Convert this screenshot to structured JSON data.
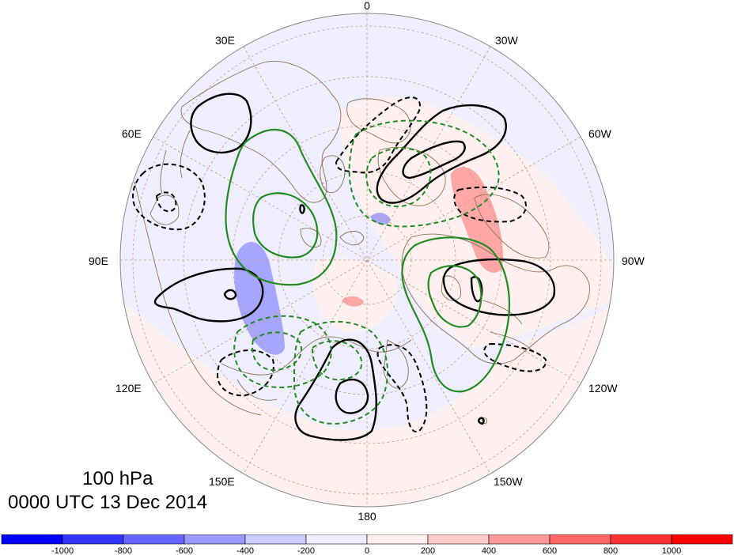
{
  "title": {
    "level": "100 hPa",
    "time": "0000 UTC 13 Dec 2014"
  },
  "longitude_labels": {
    "lon_0": "0",
    "lon_30w": "30W",
    "lon_60w": "60W",
    "lon_90w": "90W",
    "lon_120w": "120W",
    "lon_150w": "150W",
    "lon_180": "180",
    "lon_150e": "150E",
    "lon_120e": "120E",
    "lon_90e": "90E",
    "lon_60e": "60E",
    "lon_30e": "30E"
  },
  "colorbar": {
    "ticks": [
      "-1000",
      "-800",
      "-600",
      "-400",
      "-200",
      "0",
      "200",
      "400",
      "600",
      "800",
      "1000"
    ],
    "colors": [
      "#0000ff",
      "#3333ff",
      "#6666ff",
      "#9999ff",
      "#ccccff",
      "#eeeeff",
      "#ffeeee",
      "#ffcccc",
      "#ff9999",
      "#ff6666",
      "#ff3333",
      "#ff0000"
    ]
  },
  "map_colors": {
    "background_negative": "#eeeeff",
    "background_positive": "#fff0f0",
    "shade_blue": "#9999ff",
    "shade_red": "#ff9999",
    "coastline": "#8b7355",
    "grid": "#c0a080",
    "contour_black": "#000000",
    "contour_green": "#228b22"
  }
}
